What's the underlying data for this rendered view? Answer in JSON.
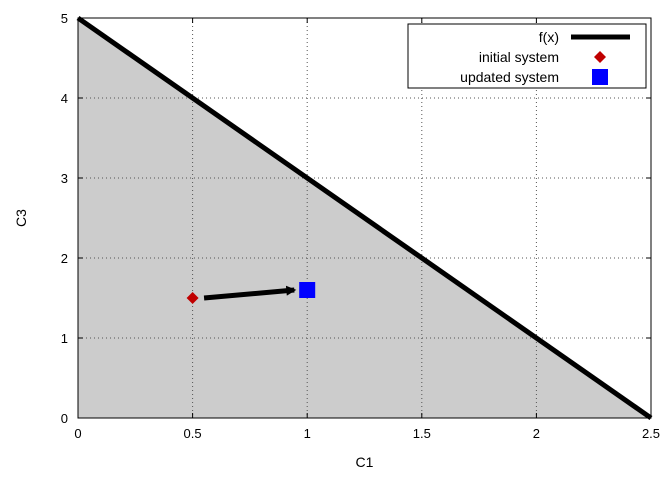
{
  "chart_data": {
    "type": "line",
    "title": "",
    "xlabel": "C1",
    "ylabel": "C3",
    "xlim": [
      0,
      2.5
    ],
    "ylim": [
      0,
      5
    ],
    "grid": true,
    "x_ticks": [
      "0",
      "0.5",
      "1",
      "1.5",
      "2",
      "2.5"
    ],
    "y_ticks": [
      "0",
      "1",
      "2",
      "3",
      "4",
      "5"
    ],
    "legend_position": "top-right",
    "series": [
      {
        "name": "f(x)",
        "kind": "line",
        "color": "#000000",
        "x": [
          0,
          2.5
        ],
        "y": [
          5,
          0
        ]
      },
      {
        "name": "initial system",
        "kind": "marker",
        "marker": "diamond",
        "color": "#c00000",
        "x": [
          0.5
        ],
        "y": [
          1.5
        ]
      },
      {
        "name": "updated system",
        "kind": "marker",
        "marker": "square",
        "color": "#0000ff",
        "x": [
          1.0
        ],
        "y": [
          1.6
        ]
      }
    ],
    "annotations": [
      {
        "type": "arrow",
        "from": [
          0.55,
          1.5
        ],
        "to": [
          0.97,
          1.6
        ],
        "color": "#000000"
      }
    ],
    "fill_color": "#cccccc"
  }
}
